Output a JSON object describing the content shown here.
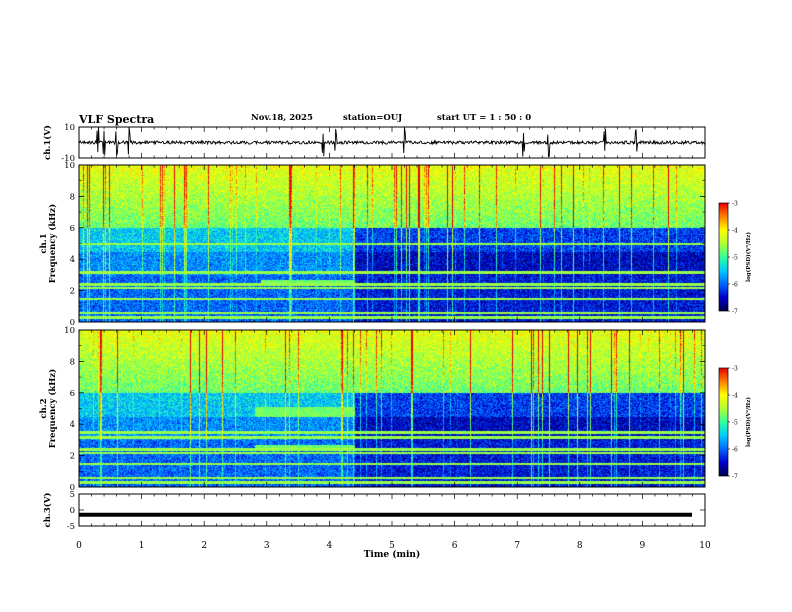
{
  "header": {
    "title": "VLF Spectra",
    "date": "Nov.18, 2025",
    "station": "station=OUJ",
    "start": "start  UT  =   1 : 50 : 0"
  },
  "colors": {
    "spectrum_scale": [
      "#00004d",
      "#0000cc",
      "#0066ff",
      "#00ccff",
      "#33ff99",
      "#b2ff33",
      "#ffff00",
      "#ff8000",
      "#e60000",
      "#ffffff"
    ]
  },
  "chart_data": [
    {
      "type": "line",
      "panel": "ch1-waveform",
      "ylabel": "ch.1(V)",
      "ylim": [
        -10,
        10
      ],
      "yticklabels": [
        "10",
        "-10"
      ],
      "xlim": [
        0,
        10
      ],
      "description_values": {
        "baseline": 0,
        "typical_amplitude": 1,
        "spike_times_min": [
          0.3,
          0.4,
          0.6,
          0.8,
          3.9,
          4.1,
          5.2,
          7.1,
          7.5,
          8.4,
          8.9
        ]
      }
    },
    {
      "type": "heatmap",
      "panel": "ch1-spectrogram",
      "ylabel": "ch.1\nFrequency (kHz)",
      "ylim": [
        0,
        10
      ],
      "yticklabels": [
        "0",
        "2",
        "4",
        "6",
        "8",
        "10"
      ],
      "xlim": [
        0,
        10
      ],
      "colorbar": {
        "label": "log(PSD)(V²/Hz)",
        "range": [
          -7,
          -3
        ],
        "ticklabels": [
          "-3",
          "-4",
          "-5",
          "-6",
          "-7"
        ]
      },
      "bands_khz": [
        0.3,
        0.6,
        1.5,
        2.2,
        2.4,
        3.2,
        5.0
      ],
      "events": [
        {
          "start_min": 2.9,
          "end_min": 4.4,
          "freq_khz": [
            2.3,
            2.7
          ]
        }
      ]
    },
    {
      "type": "heatmap",
      "panel": "ch2-spectrogram",
      "ylabel": "ch.2\nFrequency (kHz)",
      "ylim": [
        0,
        10
      ],
      "yticklabels": [
        "0",
        "2",
        "4",
        "6",
        "8",
        "10"
      ],
      "xlim": [
        0,
        10
      ],
      "colorbar": {
        "label": "log(PSD)(V²/Hz)",
        "range": [
          -7,
          -3
        ],
        "ticklabels": [
          "-3",
          "-4",
          "-5",
          "-6",
          "-7"
        ]
      },
      "bands_khz": [
        0.3,
        0.6,
        1.5,
        2.2,
        2.4,
        3.2,
        3.5
      ],
      "events": [
        {
          "start_min": 2.8,
          "end_min": 4.4,
          "freq_khz": [
            2.3,
            2.7
          ]
        },
        {
          "start_min": 2.8,
          "end_min": 4.4,
          "freq_khz": [
            4.5,
            5.1
          ]
        }
      ]
    },
    {
      "type": "line",
      "panel": "ch3-waveform",
      "ylabel": "ch.3(V)",
      "ylim": [
        -5,
        5
      ],
      "yticklabels": [
        "5",
        "0",
        "-5"
      ],
      "xlim": [
        0,
        10
      ],
      "description_values": {
        "constant_level": -1.5
      }
    }
  ],
  "xaxis": {
    "label": "Time (min)",
    "ticks": [
      0,
      1,
      2,
      3,
      4,
      5,
      6,
      7,
      8,
      9,
      10
    ],
    "ticklabels": [
      "0",
      "1",
      "2",
      "3",
      "4",
      "5",
      "6",
      "7",
      "8",
      "9",
      "10"
    ]
  }
}
